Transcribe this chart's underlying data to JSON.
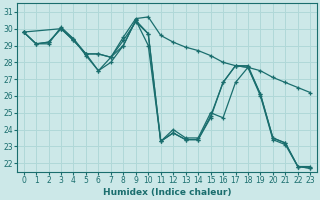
{
  "xlabel": "Humidex (Indice chaleur)",
  "xlim": [
    -0.5,
    23.5
  ],
  "ylim": [
    21.5,
    31.5
  ],
  "xticks": [
    0,
    1,
    2,
    3,
    4,
    5,
    6,
    7,
    8,
    9,
    10,
    11,
    12,
    13,
    14,
    15,
    16,
    17,
    18,
    19,
    20,
    21,
    22,
    23
  ],
  "yticks": [
    22,
    23,
    24,
    25,
    26,
    27,
    28,
    29,
    30,
    31
  ],
  "bg_color": "#cce8e8",
  "line_color": "#1a6e6e",
  "grid_color": "#b0d8d8",
  "lines": [
    {
      "x": [
        0,
        1,
        2,
        3,
        4,
        5,
        6,
        7,
        8,
        9,
        10,
        11,
        12,
        13,
        14,
        15,
        16,
        17,
        18,
        19,
        20,
        21,
        22,
        23
      ],
      "y": [
        29.8,
        29.1,
        29.2,
        30.0,
        29.3,
        28.5,
        27.5,
        28.3,
        29.5,
        30.6,
        30.7,
        29.6,
        29.2,
        28.9,
        28.7,
        28.4,
        28.0,
        27.8,
        27.7,
        27.5,
        27.1,
        26.8,
        26.5,
        26.2
      ]
    },
    {
      "x": [
        0,
        1,
        2,
        3,
        4,
        5,
        6,
        7,
        8,
        9,
        10,
        11,
        12,
        13,
        14,
        15,
        16,
        17,
        18,
        19,
        20,
        21,
        22,
        23
      ],
      "y": [
        29.8,
        29.1,
        29.2,
        30.0,
        29.3,
        28.5,
        28.5,
        28.3,
        29.3,
        30.4,
        29.7,
        23.3,
        23.8,
        23.4,
        23.4,
        24.7,
        26.8,
        27.8,
        27.8,
        26.1,
        23.5,
        23.2,
        21.8,
        21.8
      ]
    },
    {
      "x": [
        0,
        3,
        4,
        5,
        6,
        7,
        8,
        9,
        10,
        11,
        12,
        13,
        14,
        15,
        16,
        17,
        18,
        19,
        20,
        21,
        22,
        23
      ],
      "y": [
        29.8,
        30.0,
        29.4,
        28.5,
        28.5,
        28.3,
        29.0,
        30.5,
        29.7,
        23.3,
        24.0,
        23.5,
        23.5,
        25.0,
        24.7,
        26.8,
        27.7,
        26.0,
        23.4,
        23.1,
        21.8,
        21.7
      ]
    },
    {
      "x": [
        0,
        1,
        2,
        3,
        4,
        5,
        6,
        7,
        8,
        9,
        10,
        11,
        12,
        13,
        14,
        15,
        16,
        17,
        18,
        19,
        20,
        21,
        22,
        23
      ],
      "y": [
        29.8,
        29.1,
        29.1,
        30.1,
        29.4,
        28.4,
        27.5,
        28.0,
        29.0,
        30.5,
        29.0,
        23.3,
        23.8,
        23.4,
        23.4,
        24.8,
        26.8,
        27.8,
        27.7,
        26.1,
        23.5,
        23.2,
        21.8,
        21.7
      ]
    }
  ]
}
